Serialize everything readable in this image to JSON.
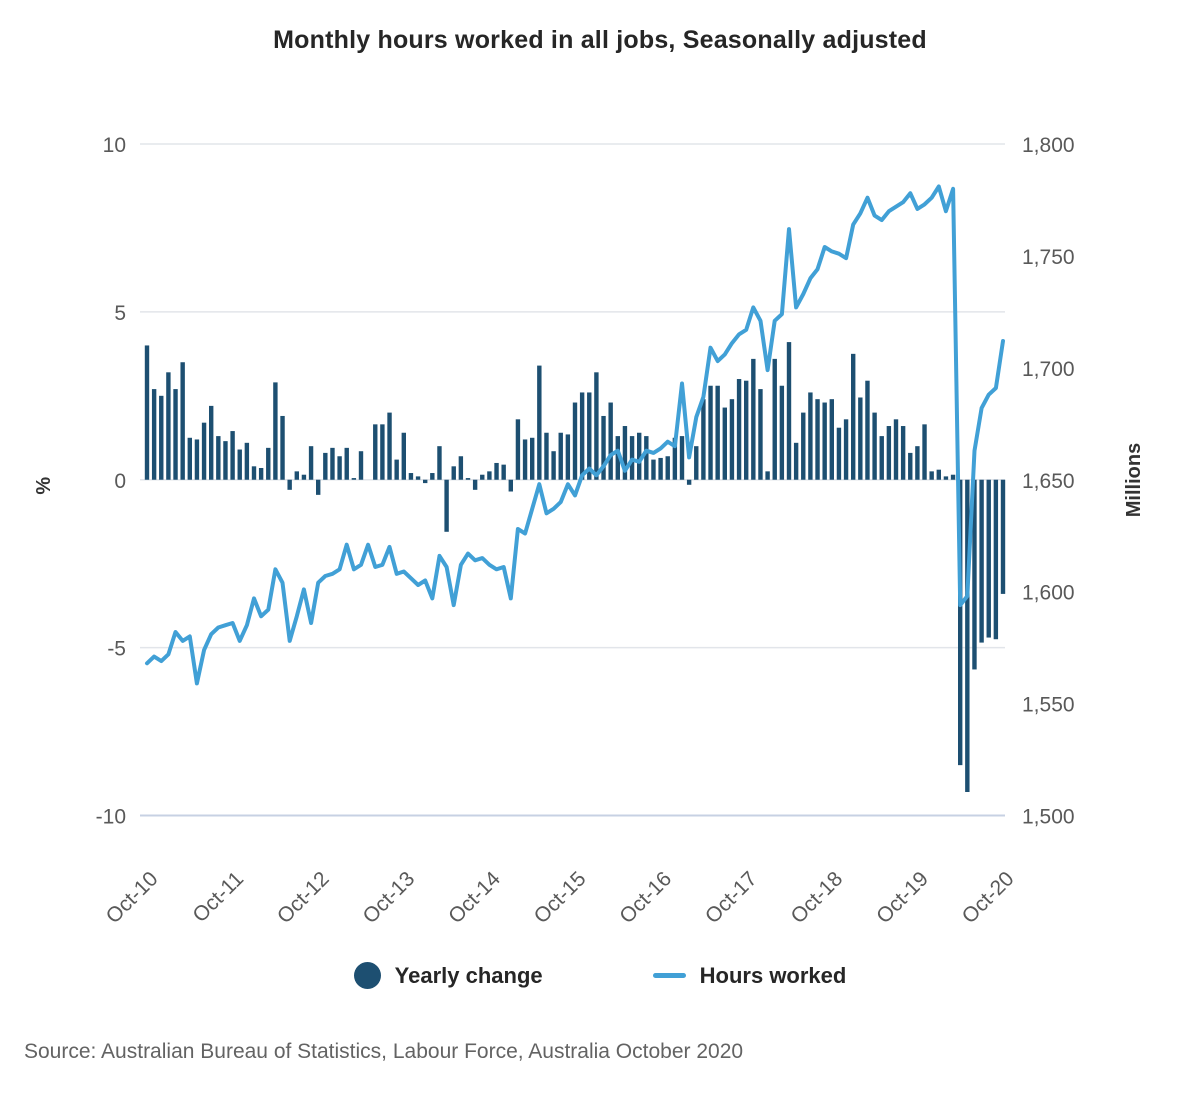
{
  "title": "Monthly hours worked in all jobs, Seasonally adjusted",
  "source": "Source: Australian Bureau of Statistics, Labour Force, Australia October 2020",
  "colors": {
    "bar": "#1d4f71",
    "line": "#41a0d6",
    "gridline": "#e2e5ea",
    "baseline": "#c7d1e3",
    "tick_text": "#595959",
    "title_text": "#262626"
  },
  "legend": [
    {
      "label": "Yearly change",
      "swatch": "circle",
      "color": "#1d4f71"
    },
    {
      "label": "Hours worked",
      "swatch": "line",
      "color": "#41a0d6"
    }
  ],
  "chart_data": {
    "type": "bar",
    "subtype": "combo bar + line, dual axis",
    "title": "Monthly hours worked in all jobs, Seasonally adjusted",
    "frequency": "monthly",
    "start": "Oct-10",
    "end": "Oct-20",
    "x_tick_labels": [
      "Oct-10",
      "Oct-11",
      "Oct-12",
      "Oct-13",
      "Oct-14",
      "Oct-15",
      "Oct-16",
      "Oct-17",
      "Oct-18",
      "Oct-19",
      "Oct-20"
    ],
    "x_tick_interval_months": 12,
    "grid": "horizontal lines at left-axis ticks",
    "legend_position": "bottom center",
    "left_axis": {
      "label": "%",
      "ticks": [
        10,
        5,
        0,
        -5,
        -10
      ],
      "range": [
        -10,
        10
      ]
    },
    "right_axis": {
      "label": "Millions",
      "ticks": [
        {
          "label": "1,800",
          "value": 1800
        },
        {
          "label": "1,750",
          "value": 1750
        },
        {
          "label": "1,700",
          "value": 1700
        },
        {
          "label": "1,650",
          "value": 1650
        },
        {
          "label": "1,600",
          "value": 1600
        },
        {
          "label": "1,550",
          "value": 1550
        },
        {
          "label": "1,500",
          "value": 1500
        }
      ],
      "range": [
        1500,
        1800
      ]
    },
    "series": [
      {
        "name": "Yearly change",
        "type": "bar",
        "axis": "left",
        "unit": "%",
        "color": "#1d4f71",
        "values": [
          4.0,
          2.7,
          2.5,
          3.2,
          2.7,
          3.5,
          1.25,
          1.2,
          1.7,
          2.2,
          1.3,
          1.15,
          1.45,
          0.9,
          1.1,
          0.4,
          0.35,
          0.95,
          2.9,
          1.9,
          -0.3,
          0.25,
          0.15,
          1.0,
          -0.45,
          0.8,
          0.95,
          0.7,
          0.95,
          0.05,
          0.85,
          0.0,
          1.65,
          1.65,
          2.0,
          0.6,
          1.4,
          0.2,
          0.1,
          -0.1,
          0.2,
          1.0,
          -1.55,
          0.4,
          0.7,
          0.05,
          -0.3,
          0.15,
          0.25,
          0.5,
          0.45,
          -0.35,
          1.8,
          1.2,
          1.25,
          3.4,
          1.4,
          0.85,
          1.4,
          1.35,
          2.3,
          2.6,
          2.6,
          3.2,
          1.9,
          2.3,
          1.3,
          1.6,
          1.3,
          1.4,
          1.3,
          0.6,
          0.65,
          0.7,
          1.25,
          1.3,
          -0.15,
          1.0,
          2.4,
          2.8,
          2.8,
          2.15,
          2.4,
          3.0,
          2.95,
          3.6,
          2.7,
          0.25,
          3.6,
          2.8,
          4.1,
          1.1,
          2.0,
          2.6,
          2.4,
          2.3,
          2.4,
          1.55,
          1.8,
          3.75,
          2.45,
          2.95,
          2.0,
          1.3,
          1.6,
          1.8,
          1.6,
          0.8,
          1.0,
          1.65,
          0.25,
          0.3,
          0.1,
          0.15,
          -8.5,
          -9.3,
          -5.65,
          -4.85,
          -4.7,
          -4.75,
          -3.4
        ]
      },
      {
        "name": "Hours worked",
        "type": "line",
        "axis": "right",
        "unit": "millions of hours",
        "color": "#41a0d6",
        "values": [
          1568,
          1571,
          1569,
          1572,
          1582,
          1578,
          1580,
          1559,
          1574,
          1581,
          1584,
          1585,
          1586,
          1578,
          1585,
          1597,
          1589,
          1592,
          1610,
          1604,
          1578,
          1589,
          1601,
          1586,
          1604,
          1607,
          1608,
          1610,
          1621,
          1610,
          1612,
          1621,
          1611,
          1612,
          1620,
          1608,
          1609,
          1606,
          1603,
          1605,
          1597,
          1616,
          1611,
          1594,
          1612,
          1617,
          1614,
          1615,
          1612,
          1610,
          1611,
          1597,
          1628,
          1626,
          1637,
          1648,
          1635,
          1637,
          1640,
          1648,
          1643,
          1652,
          1655,
          1652,
          1656,
          1661,
          1663,
          1654,
          1659,
          1658,
          1663,
          1662,
          1664,
          1667,
          1665,
          1693,
          1660,
          1678,
          1687,
          1709,
          1703,
          1706,
          1711,
          1715,
          1717,
          1727,
          1721,
          1699,
          1721,
          1724,
          1762,
          1727,
          1733,
          1740,
          1744,
          1754,
          1752,
          1751,
          1749,
          1764,
          1769,
          1776,
          1768,
          1766,
          1770,
          1772,
          1774,
          1778,
          1771,
          1773,
          1776,
          1781,
          1770,
          1780,
          1594,
          1598,
          1663,
          1682,
          1688,
          1691,
          1712
        ]
      }
    ]
  }
}
